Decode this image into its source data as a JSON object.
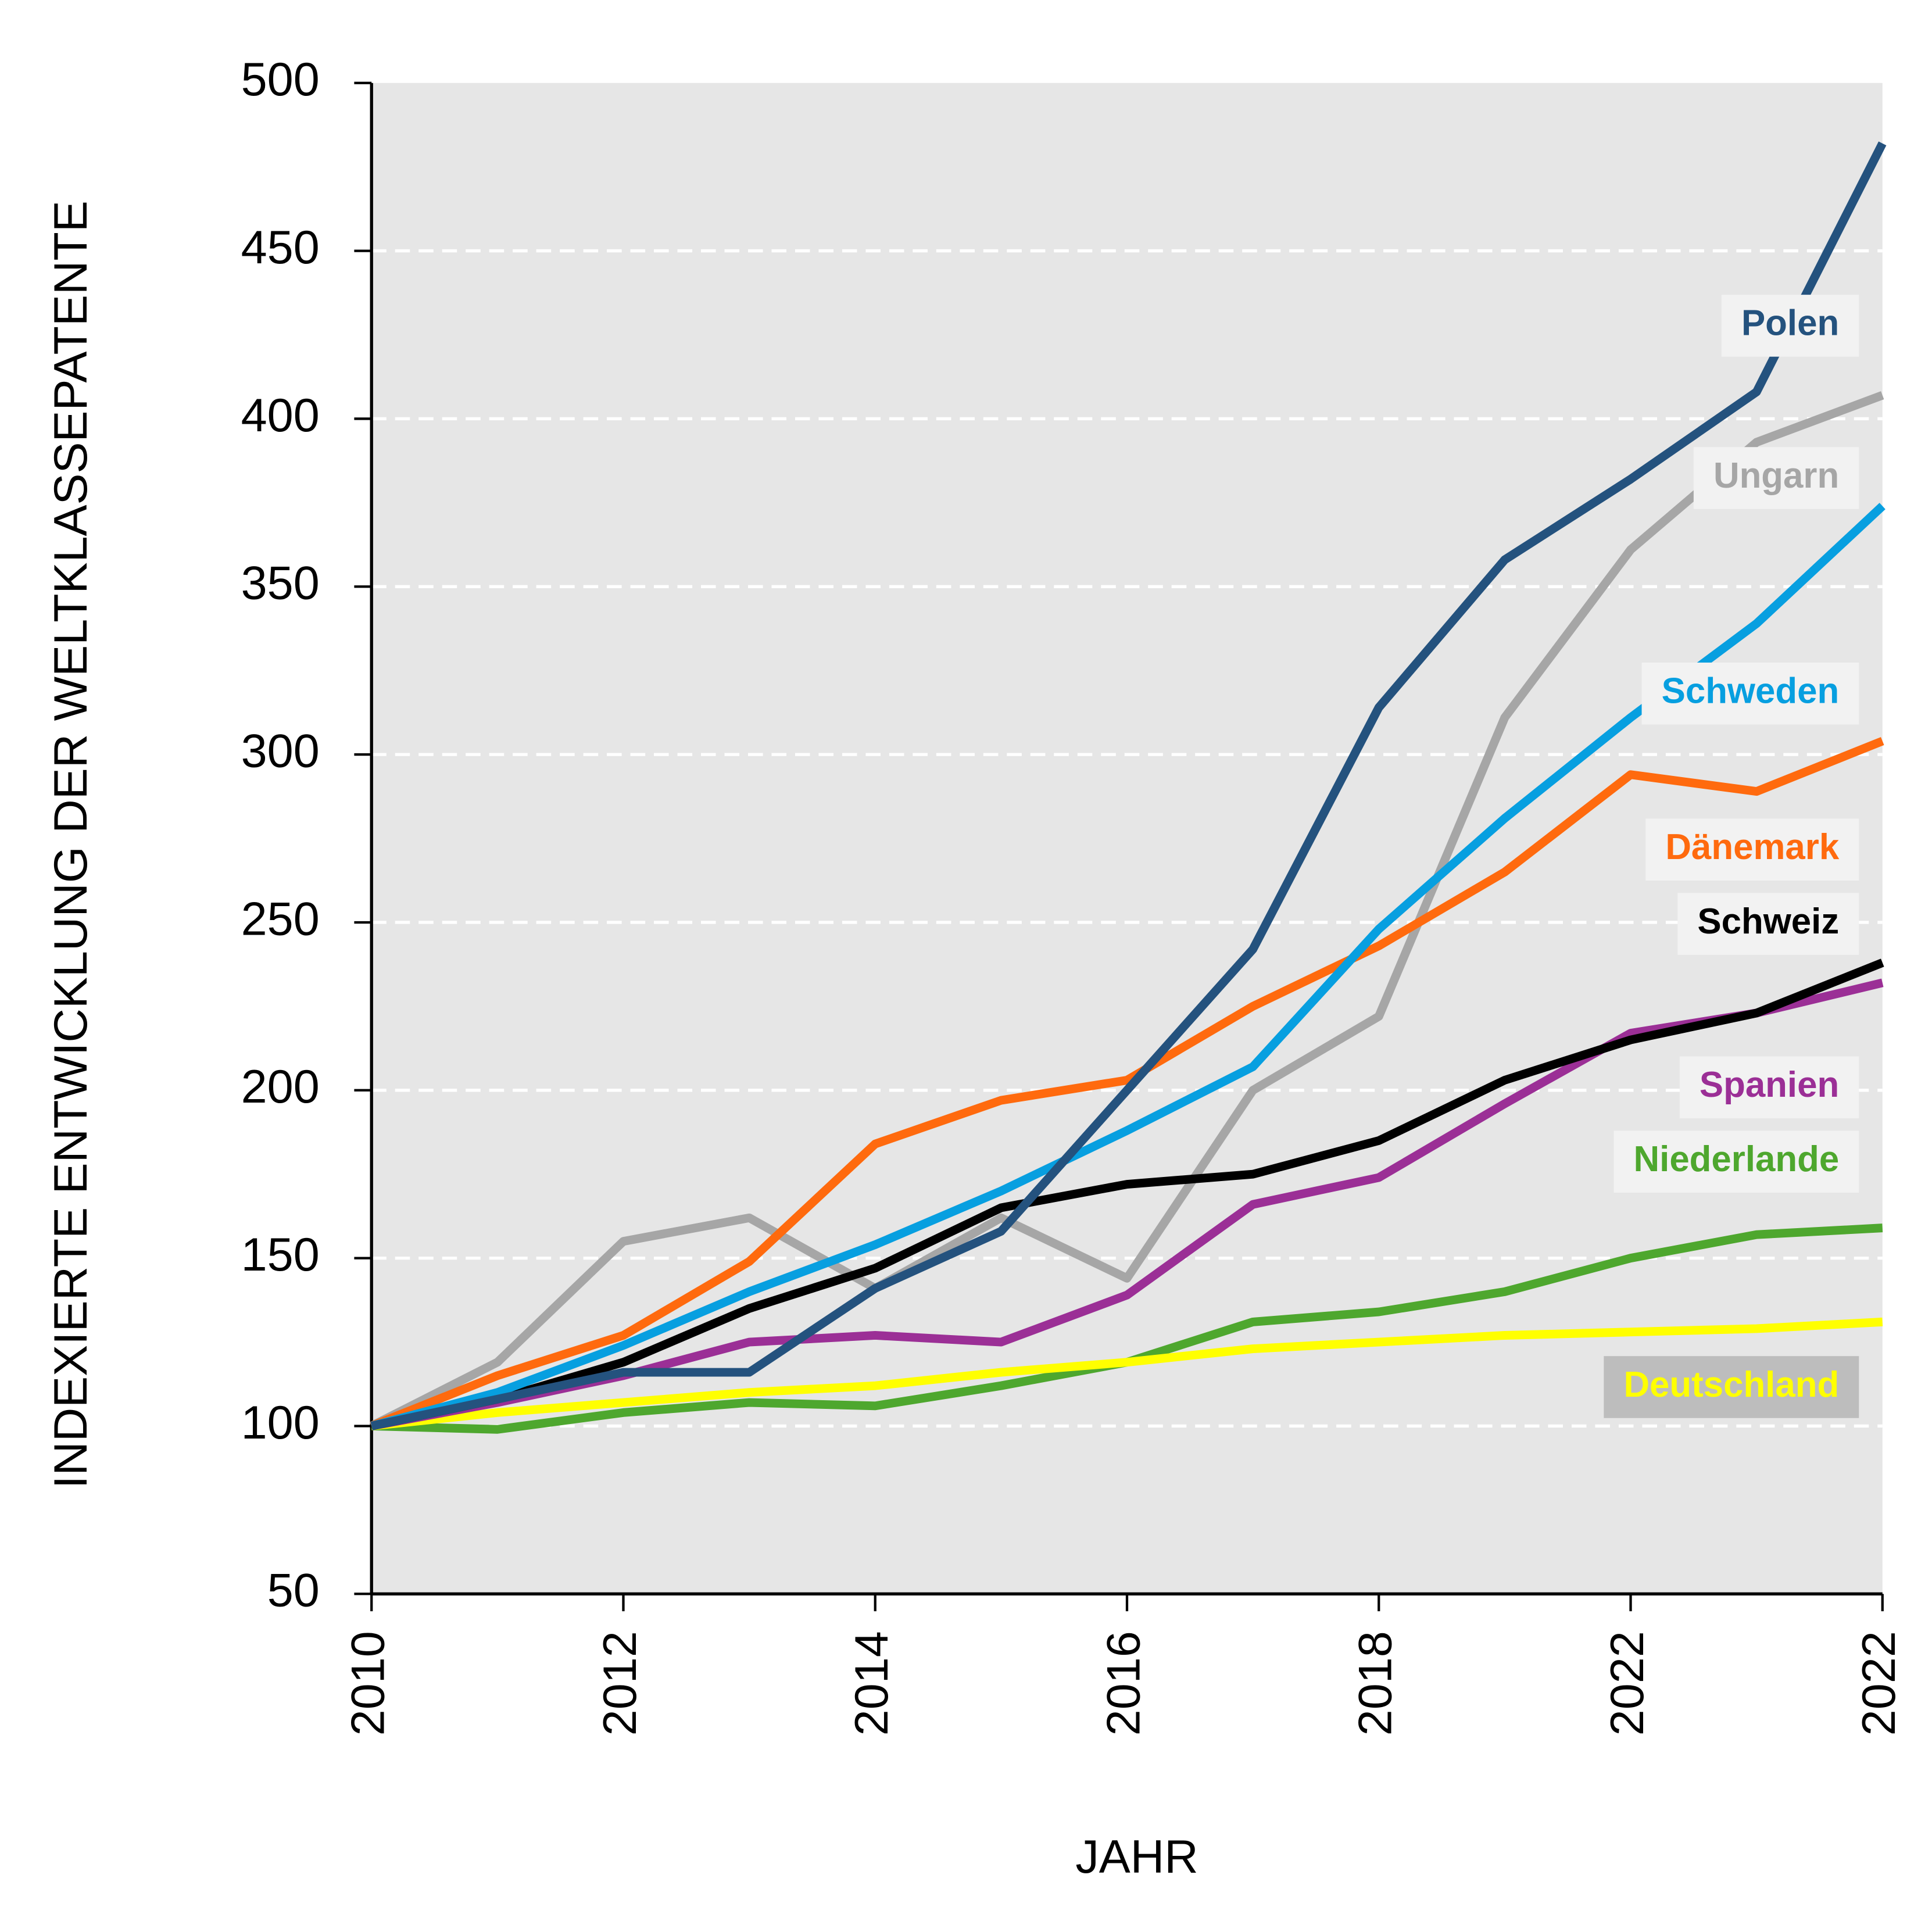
{
  "chart_data": {
    "type": "line",
    "x_label": "JAHR",
    "y_label": "INDEXIERTE ENTWICKLUNG DER WELTKLASSEPATENTE",
    "categories": [
      "2010",
      null,
      "2012",
      null,
      "2014",
      null,
      "2016",
      null,
      "2018",
      null,
      "2022",
      null,
      "2022"
    ],
    "ylim": [
      50,
      500
    ],
    "yticks": [
      50,
      100,
      150,
      200,
      250,
      300,
      350,
      400,
      450,
      500
    ],
    "grid": true,
    "series": [
      {
        "name": "Polen",
        "color": "#24527e",
        "values": [
          100,
          108,
          116,
          116,
          141,
          158,
          200,
          242,
          314,
          358,
          382,
          408,
          482
        ]
      },
      {
        "name": "Ungarn",
        "color": "#a6a6a6",
        "values": [
          100,
          119,
          155,
          162,
          141,
          162,
          144,
          200,
          222,
          311,
          361,
          393,
          407
        ]
      },
      {
        "name": "Schweden",
        "color": "#079fe0",
        "values": [
          100,
          110,
          124,
          140,
          154,
          170,
          188,
          207,
          248,
          281,
          311,
          339,
          374
        ]
      },
      {
        "name": "Dänemark",
        "color": "#ff6a0e",
        "values": [
          100,
          115,
          127,
          149,
          184,
          197,
          203,
          225,
          243,
          265,
          294,
          289,
          304
        ]
      },
      {
        "name": "Schweiz",
        "color": "#000000",
        "values": [
          100,
          108,
          119,
          135,
          147,
          165,
          172,
          175,
          185,
          203,
          215,
          223,
          238
        ]
      },
      {
        "name": "Spanien",
        "color": "#9b2f96",
        "values": [
          100,
          107,
          115,
          125,
          127,
          125,
          139,
          166,
          174,
          196,
          217,
          223,
          232
        ]
      },
      {
        "name": "Niederlande",
        "color": "#4ea72e",
        "values": [
          100,
          99,
          104,
          107,
          106,
          112,
          119,
          131,
          134,
          140,
          150,
          157,
          159
        ]
      },
      {
        "name": "Deutschland",
        "color": "#ffff00",
        "values": [
          100,
          104,
          107,
          110,
          112,
          116,
          119,
          123,
          125,
          127,
          128,
          129,
          131
        ]
      }
    ]
  }
}
